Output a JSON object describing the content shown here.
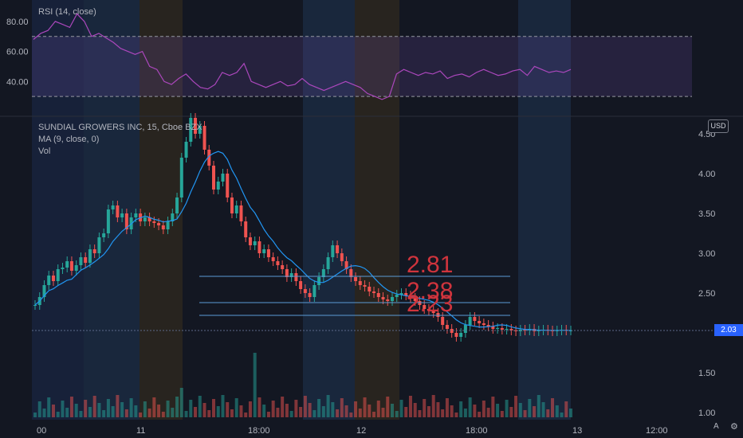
{
  "rsi_panel": {
    "title": "RSI (14, close)",
    "y_ticks": [
      "80.00",
      "60.00",
      "40.00"
    ]
  },
  "price_panel": {
    "legend": [
      "SUNDIAL GROWERS INC, 15, Cboe BZX",
      "MA (9, close, 0)",
      "Vol"
    ],
    "currency": "USD",
    "y_ticks": [
      "4.50",
      "4.00",
      "3.50",
      "3.00",
      "2.50",
      "1.50",
      "1.00"
    ],
    "current_price": "2.03",
    "x_ticks": [
      "00",
      "11",
      "18:00",
      "12",
      "18:00",
      "13",
      "12:00"
    ],
    "annotations": [
      "2.81",
      "2.38",
      "2.23"
    ],
    "auto_button": "A",
    "settings_icon": "gear-icon"
  },
  "chart_data": {
    "type": "candlestick",
    "title": "SUNDIAL GROWERS INC, 15, Cboe BZX",
    "ylim": [
      1.0,
      4.5
    ],
    "rsi_ylim": [
      20,
      90
    ],
    "rsi_levels": [
      70,
      30
    ],
    "annotations": [
      2.81,
      2.38,
      2.23
    ],
    "current_price": 2.03,
    "closes": [
      2.35,
      2.45,
      2.6,
      2.72,
      2.65,
      2.8,
      2.82,
      2.9,
      2.78,
      2.85,
      2.95,
      2.88,
      3.05,
      3.0,
      3.2,
      3.25,
      3.55,
      3.6,
      3.45,
      3.5,
      3.3,
      3.45,
      3.5,
      3.4,
      3.45,
      3.4,
      3.38,
      3.35,
      3.3,
      3.4,
      3.5,
      3.7,
      4.2,
      4.4,
      4.7,
      4.5,
      4.6,
      4.3,
      4.1,
      3.8,
      3.9,
      4.0,
      3.7,
      3.5,
      3.6,
      3.4,
      3.2,
      3.1,
      3.15,
      3.0,
      3.05,
      2.95,
      2.9,
      2.85,
      2.8,
      2.7,
      2.75,
      2.65,
      2.55,
      2.5,
      2.45,
      2.6,
      2.7,
      2.8,
      2.95,
      3.1,
      3.0,
      2.9,
      2.8,
      2.7,
      2.65,
      2.6,
      2.58,
      2.52,
      2.5,
      2.45,
      2.42,
      2.4,
      2.45,
      2.48,
      2.5,
      2.47,
      2.44,
      2.4,
      2.35,
      2.3,
      2.28,
      2.25,
      2.2,
      2.1,
      2.05,
      2.0,
      1.95,
      2.0,
      2.1,
      2.2,
      2.15,
      2.12,
      2.1,
      2.08,
      2.05,
      2.06,
      2.04,
      2.05,
      2.03,
      2.02,
      2.04,
      2.03,
      2.05,
      2.02,
      2.03,
      2.04,
      2.03,
      2.02,
      2.03,
      2.04,
      2.03,
      2.03
    ],
    "rsi": [
      68,
      72,
      74,
      80,
      78,
      76,
      85,
      80,
      70,
      72,
      69,
      66,
      62,
      60,
      58,
      60,
      50,
      48,
      40,
      38,
      42,
      45,
      40,
      36,
      35,
      38,
      46,
      44,
      46,
      52,
      40,
      38,
      36,
      38,
      40,
      37,
      38,
      42,
      38,
      36,
      34,
      36,
      38,
      40,
      38,
      36,
      32,
      30,
      28,
      30,
      45,
      48,
      46,
      44,
      46,
      45,
      47,
      42,
      44,
      45,
      43,
      46,
      48,
      46,
      44,
      45,
      47,
      48,
      44,
      50,
      48,
      46,
      47,
      46,
      48
    ]
  }
}
